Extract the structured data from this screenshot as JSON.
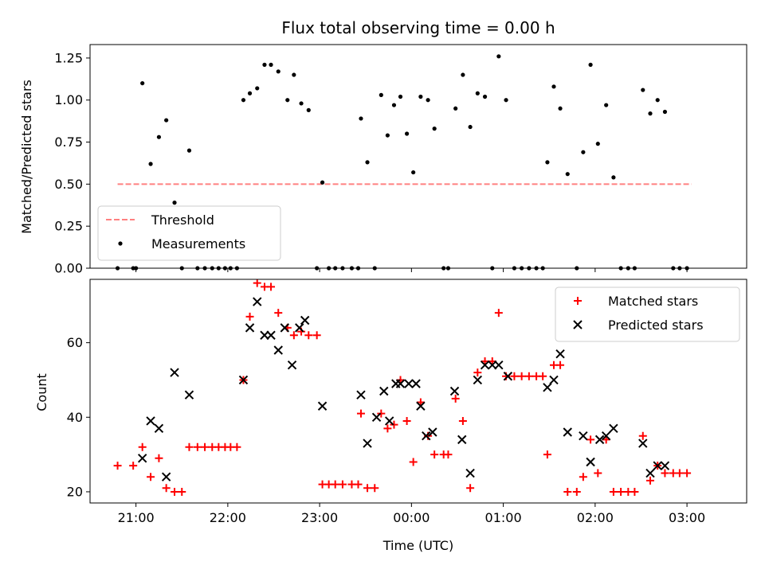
{
  "chart_data": [
    {
      "type": "scatter",
      "title": "Flux total observing time = 0.00 h",
      "xlabel": "",
      "ylabel": "Matched/Predicted stars",
      "ylim": [
        0,
        1.33
      ],
      "xlim_hours": [
        -3.5,
        3.65
      ],
      "yticks": [
        0.0,
        0.25,
        0.5,
        0.75,
        1.0,
        1.25
      ],
      "ytick_labels": [
        "0.00",
        "0.25",
        "0.50",
        "0.75",
        "1.00",
        "1.25"
      ],
      "threshold": {
        "name": "Threshold",
        "value": 0.5,
        "x_range": [
          -3.2,
          3.05
        ],
        "color": "#ff8080"
      },
      "legend": [
        "Threshold",
        "Measurements"
      ],
      "legend_placement": "lower-left",
      "series": [
        {
          "name": "Measurements",
          "color": "#000000",
          "points": [
            [
              -3.2,
              0
            ],
            [
              -3.03,
              0
            ],
            [
              -3.0,
              0
            ],
            [
              -2.93,
              1.1
            ],
            [
              -2.84,
              0.62
            ],
            [
              -2.75,
              0.78
            ],
            [
              -2.67,
              0.88
            ],
            [
              -2.58,
              0.39
            ],
            [
              -2.5,
              0
            ],
            [
              -2.42,
              0.7
            ],
            [
              -2.33,
              0
            ],
            [
              -2.25,
              0
            ],
            [
              -2.17,
              0
            ],
            [
              -2.1,
              0
            ],
            [
              -2.03,
              0
            ],
            [
              -1.97,
              0
            ],
            [
              -1.9,
              0
            ],
            [
              -1.83,
              1.0
            ],
            [
              -1.76,
              1.04
            ],
            [
              -1.68,
              1.07
            ],
            [
              -1.6,
              1.21
            ],
            [
              -1.53,
              1.21
            ],
            [
              -1.45,
              1.17
            ],
            [
              -1.35,
              1.0
            ],
            [
              -1.28,
              1.15
            ],
            [
              -1.2,
              0.98
            ],
            [
              -1.12,
              0.94
            ],
            [
              -1.03,
              0
            ],
            [
              -0.97,
              0.51
            ],
            [
              -0.9,
              0
            ],
            [
              -0.83,
              0
            ],
            [
              -0.75,
              0
            ],
            [
              -0.65,
              0
            ],
            [
              -0.58,
              0
            ],
            [
              -0.55,
              0.89
            ],
            [
              -0.48,
              0.63
            ],
            [
              -0.4,
              0
            ],
            [
              -0.33,
              1.03
            ],
            [
              -0.26,
              0.79
            ],
            [
              -0.19,
              0.97
            ],
            [
              -0.12,
              1.02
            ],
            [
              -0.05,
              0.8
            ],
            [
              0.02,
              0.57
            ],
            [
              0.1,
              1.02
            ],
            [
              0.18,
              1.0
            ],
            [
              0.25,
              0.83
            ],
            [
              0.35,
              0
            ],
            [
              0.4,
              0
            ],
            [
              0.48,
              0.95
            ],
            [
              0.56,
              1.15
            ],
            [
              0.64,
              0.84
            ],
            [
              0.72,
              1.04
            ],
            [
              0.8,
              1.02
            ],
            [
              0.88,
              0
            ],
            [
              0.95,
              1.26
            ],
            [
              1.03,
              1.0
            ],
            [
              1.12,
              0
            ],
            [
              1.2,
              0
            ],
            [
              1.28,
              0
            ],
            [
              1.36,
              0
            ],
            [
              1.43,
              0
            ],
            [
              1.48,
              0.63
            ],
            [
              1.55,
              1.08
            ],
            [
              1.62,
              0.95
            ],
            [
              1.7,
              0.56
            ],
            [
              1.8,
              0
            ],
            [
              1.87,
              0.69
            ],
            [
              1.95,
              1.21
            ],
            [
              2.03,
              0.74
            ],
            [
              2.12,
              0.97
            ],
            [
              2.2,
              0.54
            ],
            [
              2.28,
              0
            ],
            [
              2.36,
              0
            ],
            [
              2.43,
              0
            ],
            [
              2.52,
              1.06
            ],
            [
              2.6,
              0.92
            ],
            [
              2.68,
              1.0
            ],
            [
              2.76,
              0.93
            ],
            [
              2.85,
              0
            ],
            [
              2.92,
              0
            ],
            [
              3.0,
              0
            ]
          ]
        }
      ]
    },
    {
      "type": "scatter",
      "title": "",
      "xlabel": "Time (UTC)",
      "ylabel": "Count",
      "ylim": [
        17,
        77
      ],
      "xlim_hours": [
        -3.5,
        3.65
      ],
      "yticks": [
        20,
        40,
        60
      ],
      "ytick_labels": [
        "20",
        "40",
        "60"
      ],
      "xticks_hours": [
        -3,
        -2,
        -1,
        0,
        1,
        2,
        3
      ],
      "xtick_labels": [
        "21:00",
        "22:00",
        "23:00",
        "00:00",
        "01:00",
        "02:00",
        "03:00"
      ],
      "legend": [
        "Matched stars",
        "Predicted stars"
      ],
      "legend_placement": "top-right",
      "series": [
        {
          "name": "Matched stars",
          "marker": "+",
          "color": "#ff0000",
          "points": [
            [
              -3.2,
              27
            ],
            [
              -3.03,
              27
            ],
            [
              -2.93,
              32
            ],
            [
              -2.84,
              24
            ],
            [
              -2.75,
              29
            ],
            [
              -2.67,
              21
            ],
            [
              -2.58,
              20
            ],
            [
              -2.5,
              20
            ],
            [
              -2.42,
              32
            ],
            [
              -2.33,
              32
            ],
            [
              -2.25,
              32
            ],
            [
              -2.17,
              32
            ],
            [
              -2.1,
              32
            ],
            [
              -2.03,
              32
            ],
            [
              -1.97,
              32
            ],
            [
              -1.9,
              32
            ],
            [
              -1.83,
              50
            ],
            [
              -1.76,
              67
            ],
            [
              -1.68,
              76
            ],
            [
              -1.6,
              75
            ],
            [
              -1.53,
              75
            ],
            [
              -1.45,
              68
            ],
            [
              -1.35,
              64
            ],
            [
              -1.28,
              62
            ],
            [
              -1.2,
              63
            ],
            [
              -1.12,
              62
            ],
            [
              -1.03,
              62
            ],
            [
              -0.97,
              22
            ],
            [
              -0.9,
              22
            ],
            [
              -0.83,
              22
            ],
            [
              -0.75,
              22
            ],
            [
              -0.65,
              22
            ],
            [
              -0.58,
              22
            ],
            [
              -0.55,
              41
            ],
            [
              -0.48,
              21
            ],
            [
              -0.4,
              21
            ],
            [
              -0.33,
              41
            ],
            [
              -0.26,
              37
            ],
            [
              -0.19,
              38
            ],
            [
              -0.12,
              50
            ],
            [
              -0.05,
              39
            ],
            [
              0.02,
              28
            ],
            [
              0.1,
              44
            ],
            [
              0.18,
              35
            ],
            [
              0.25,
              30
            ],
            [
              0.35,
              30
            ],
            [
              0.4,
              30
            ],
            [
              0.48,
              45
            ],
            [
              0.56,
              39
            ],
            [
              0.64,
              21
            ],
            [
              0.72,
              52
            ],
            [
              0.8,
              55
            ],
            [
              0.88,
              55
            ],
            [
              0.95,
              68
            ],
            [
              1.03,
              51
            ],
            [
              1.12,
              51
            ],
            [
              1.2,
              51
            ],
            [
              1.28,
              51
            ],
            [
              1.36,
              51
            ],
            [
              1.43,
              51
            ],
            [
              1.48,
              30
            ],
            [
              1.55,
              54
            ],
            [
              1.62,
              54
            ],
            [
              1.7,
              20
            ],
            [
              1.8,
              20
            ],
            [
              1.87,
              24
            ],
            [
              1.95,
              34
            ],
            [
              2.03,
              25
            ],
            [
              2.12,
              34
            ],
            [
              2.2,
              20
            ],
            [
              2.28,
              20
            ],
            [
              2.36,
              20
            ],
            [
              2.43,
              20
            ],
            [
              2.52,
              35
            ],
            [
              2.6,
              23
            ],
            [
              2.68,
              27
            ],
            [
              2.76,
              25
            ],
            [
              2.85,
              25
            ],
            [
              2.92,
              25
            ],
            [
              3.0,
              25
            ]
          ]
        },
        {
          "name": "Predicted stars",
          "marker": "x",
          "color": "#000000",
          "points": [
            [
              -2.93,
              29
            ],
            [
              -2.84,
              39
            ],
            [
              -2.75,
              37
            ],
            [
              -2.67,
              24
            ],
            [
              -2.58,
              52
            ],
            [
              -2.42,
              46
            ],
            [
              -1.83,
              50
            ],
            [
              -1.76,
              64
            ],
            [
              -1.68,
              71
            ],
            [
              -1.6,
              62
            ],
            [
              -1.53,
              62
            ],
            [
              -1.45,
              58
            ],
            [
              -1.38,
              64
            ],
            [
              -1.3,
              54
            ],
            [
              -1.22,
              64
            ],
            [
              -1.16,
              66
            ],
            [
              -0.97,
              43
            ],
            [
              -0.55,
              46
            ],
            [
              -0.48,
              33
            ],
            [
              -0.38,
              40
            ],
            [
              -0.3,
              47
            ],
            [
              -0.24,
              39
            ],
            [
              -0.17,
              49
            ],
            [
              -0.12,
              49
            ],
            [
              -0.03,
              49
            ],
            [
              0.05,
              49
            ],
            [
              0.1,
              43
            ],
            [
              0.16,
              35
            ],
            [
              0.23,
              36
            ],
            [
              0.47,
              47
            ],
            [
              0.55,
              34
            ],
            [
              0.64,
              25
            ],
            [
              0.72,
              50
            ],
            [
              0.8,
              54
            ],
            [
              0.88,
              54
            ],
            [
              0.95,
              54
            ],
            [
              1.05,
              51
            ],
            [
              1.48,
              48
            ],
            [
              1.55,
              50
            ],
            [
              1.62,
              57
            ],
            [
              1.7,
              36
            ],
            [
              1.87,
              35
            ],
            [
              1.95,
              28
            ],
            [
              2.05,
              34
            ],
            [
              2.12,
              35
            ],
            [
              2.2,
              37
            ],
            [
              2.52,
              33
            ],
            [
              2.6,
              25
            ],
            [
              2.68,
              27
            ],
            [
              2.76,
              27
            ]
          ]
        }
      ]
    }
  ]
}
